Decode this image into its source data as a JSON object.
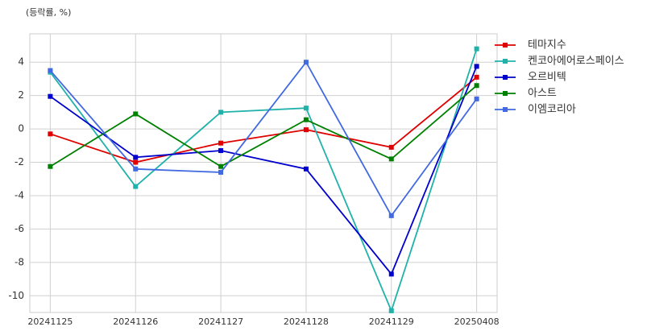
{
  "chart_data": {
    "type": "line",
    "y_label": "(등락률, %)",
    "categories": [
      "20241125",
      "20241126",
      "20241127",
      "20241128",
      "20241129",
      "20250408"
    ],
    "series": [
      {
        "name": "테마지수",
        "color": "#e00000",
        "values": [
          -0.3,
          -2.0,
          -0.85,
          -0.05,
          -1.1,
          3.1
        ]
      },
      {
        "name": "켄코아에어로스페이스",
        "color": "#20b2aa",
        "values": [
          3.4,
          -3.45,
          1.0,
          1.25,
          -10.9,
          4.8
        ]
      },
      {
        "name": "오르비텍",
        "color": "#0000cd",
        "values": [
          1.95,
          -1.7,
          -1.3,
          -2.4,
          -8.7,
          3.75
        ]
      },
      {
        "name": "아스트",
        "color": "#008000",
        "values": [
          -2.25,
          0.9,
          -2.25,
          0.55,
          -1.8,
          2.6
        ]
      },
      {
        "name": "이엠코리아",
        "color": "#4169e1",
        "values": [
          3.5,
          -2.4,
          -2.6,
          4.0,
          -5.2,
          1.8
        ]
      }
    ],
    "ylim": [
      -11,
      5.7
    ],
    "yticks": [
      -10,
      -8,
      -6,
      -4,
      -2,
      0,
      2,
      4
    ],
    "grid": true
  }
}
